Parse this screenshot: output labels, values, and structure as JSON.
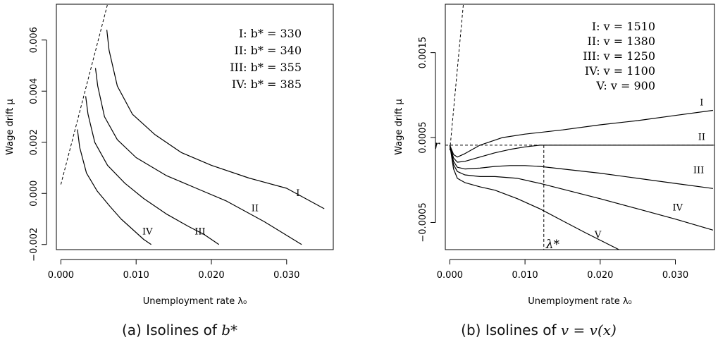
{
  "chart_data": [
    {
      "type": "line",
      "xlabel": "Unemployment rate λ₀",
      "ylabel": "Wage drift μ",
      "xlim": [
        -0.0006,
        0.0362
      ],
      "ylim": [
        -0.0022,
        0.0074
      ],
      "xticks": [
        "0.000",
        "0.010",
        "0.020",
        "0.030"
      ],
      "xtick_values": [
        0.0,
        0.01,
        0.02,
        0.03
      ],
      "yticks": [
        "−0.002",
        "0.000",
        "0.002",
        "0.004",
        "0.006"
      ],
      "ytick_values": [
        -0.002,
        0.0,
        0.002,
        0.004,
        0.006
      ],
      "legend": [
        "I:  b* = 330",
        "II:  b* = 340",
        "III:  b* = 355",
        "IV:  b* = 385"
      ],
      "legend_position": "top-right",
      "boundary": {
        "x": [
          0.0,
          0.0062
        ],
        "y": [
          0.00035,
          0.0074
        ],
        "style": "dashed"
      },
      "series": [
        {
          "name": "I",
          "x": [
            0.0061,
            0.0064,
            0.0075,
            0.0095,
            0.0125,
            0.016,
            0.02,
            0.025,
            0.03,
            0.035
          ],
          "y": [
            0.0064,
            0.0056,
            0.0042,
            0.0031,
            0.0023,
            0.0016,
            0.0011,
            0.0006,
            0.0002,
            -0.0006
          ]
        },
        {
          "name": "II",
          "x": [
            0.0046,
            0.0049,
            0.0058,
            0.0075,
            0.01,
            0.014,
            0.018,
            0.022,
            0.027,
            0.032
          ],
          "y": [
            0.0049,
            0.0042,
            0.003,
            0.0021,
            0.0014,
            0.0007,
            0.0002,
            -0.0003,
            -0.0011,
            -0.002
          ]
        },
        {
          "name": "III",
          "x": [
            0.0033,
            0.0036,
            0.0045,
            0.0062,
            0.0085,
            0.011,
            0.014,
            0.017,
            0.019,
            0.021
          ],
          "y": [
            0.0038,
            0.0031,
            0.002,
            0.0011,
            0.0004,
            -0.0002,
            -0.0008,
            -0.0013,
            -0.0016,
            -0.002
          ]
        },
        {
          "name": "IV",
          "x": [
            0.0022,
            0.0025,
            0.0034,
            0.0048,
            0.0065,
            0.008,
            0.0095,
            0.011,
            0.012
          ],
          "y": [
            0.0025,
            0.0018,
            0.0008,
            0.0001,
            -0.0005,
            -0.001,
            -0.0014,
            -0.0018,
            -0.002
          ]
        }
      ],
      "series_labels": [
        {
          "text": "I",
          "x": 0.0315,
          "y": -0.0001
        },
        {
          "text": "II",
          "x": 0.0258,
          "y": -0.0007
        },
        {
          "text": "III",
          "x": 0.0185,
          "y": -0.0016
        },
        {
          "text": "IV",
          "x": 0.0115,
          "y": -0.0016
        }
      ]
    },
    {
      "type": "line",
      "xlabel": "Unemployment rate λ₀",
      "ylabel": "Wage drift μ",
      "xlim": [
        -0.0006,
        0.0352
      ],
      "ylim": [
        -0.00082,
        0.00207
      ],
      "xticks": [
        "0.000",
        "0.010",
        "0.020",
        "0.030"
      ],
      "xtick_values": [
        0.0,
        0.01,
        0.02,
        0.03
      ],
      "yticks": [
        "−0.0005",
        "0.0005",
        "0.0015"
      ],
      "ytick_values": [
        -0.0005,
        0.0005,
        0.0015
      ],
      "legend": [
        "I:  v = 1510",
        "II:  v = 1380",
        "III:  v = 1250",
        "IV:  v = 1100",
        "V:  v = 900"
      ],
      "legend_position": "top-right",
      "boundary": {
        "x": [
          0.0,
          0.0018
        ],
        "y": [
          0.00035,
          0.00207
        ],
        "style": "dashed"
      },
      "reference_line": {
        "label": "r",
        "y": 0.00041,
        "style": "dashed"
      },
      "critical_point": {
        "label": "λ*",
        "x": 0.0125,
        "style": "dashed"
      },
      "series": [
        {
          "name": "I",
          "x": [
            0.0,
            0.0005,
            0.001,
            0.002,
            0.004,
            0.007,
            0.01,
            0.015,
            0.02,
            0.025,
            0.03,
            0.035
          ],
          "y": [
            0.00041,
            0.0003,
            0.00027,
            0.00031,
            0.00041,
            0.0005,
            0.00054,
            0.00059,
            0.00065,
            0.0007,
            0.00076,
            0.00082
          ]
        },
        {
          "name": "II",
          "x": [
            0.0,
            0.0005,
            0.001,
            0.002,
            0.004,
            0.006,
            0.008,
            0.01,
            0.012,
            0.0125,
            0.02,
            0.035
          ],
          "y": [
            0.00041,
            0.00026,
            0.00021,
            0.00022,
            0.00027,
            0.00032,
            0.00036,
            0.00039,
            0.00041,
            0.00041,
            0.00041,
            0.00041
          ]
        },
        {
          "name": "III",
          "x": [
            0.0,
            0.0005,
            0.001,
            0.002,
            0.004,
            0.006,
            0.008,
            0.01,
            0.012,
            0.015,
            0.02,
            0.025,
            0.03,
            0.035
          ],
          "y": [
            0.00041,
            0.00022,
            0.00015,
            0.00013,
            0.00014,
            0.00016,
            0.00017,
            0.00017,
            0.00016,
            0.00013,
            8e-05,
            2e-05,
            -4e-05,
            -0.0001
          ]
        },
        {
          "name": "IV",
          "x": [
            0.0,
            0.0005,
            0.001,
            0.002,
            0.004,
            0.006,
            0.009,
            0.012,
            0.016,
            0.02,
            0.025,
            0.03,
            0.035
          ],
          "y": [
            0.00041,
            0.00018,
            0.0001,
            6e-05,
            4e-05,
            4e-05,
            2e-05,
            -4e-05,
            -0.00013,
            -0.00022,
            -0.00034,
            -0.00046,
            -0.00059
          ]
        },
        {
          "name": "V",
          "x": [
            0.0,
            0.0005,
            0.001,
            0.002,
            0.004,
            0.006,
            0.009,
            0.012,
            0.015,
            0.018,
            0.0225
          ],
          "y": [
            0.00041,
            0.00013,
            2e-05,
            -3e-05,
            -8e-05,
            -0.00012,
            -0.00022,
            -0.00034,
            -0.00048,
            -0.00062,
            -0.00082
          ]
        }
      ],
      "series_labels": [
        {
          "text": "I",
          "x": 0.0335,
          "y": 0.00088
        },
        {
          "text": "II",
          "x": 0.0335,
          "y": 0.00047
        },
        {
          "text": "III",
          "x": 0.0331,
          "y": 8e-05
        },
        {
          "text": "IV",
          "x": 0.0303,
          "y": -0.00036
        },
        {
          "text": "V",
          "x": 0.0197,
          "y": -0.00068
        }
      ]
    }
  ],
  "captions": {
    "a_prefix": "(a) Isolines of ",
    "a_math": "b*",
    "b_prefix": "(b) Isolines of ",
    "b_math": "v = v(x)"
  }
}
